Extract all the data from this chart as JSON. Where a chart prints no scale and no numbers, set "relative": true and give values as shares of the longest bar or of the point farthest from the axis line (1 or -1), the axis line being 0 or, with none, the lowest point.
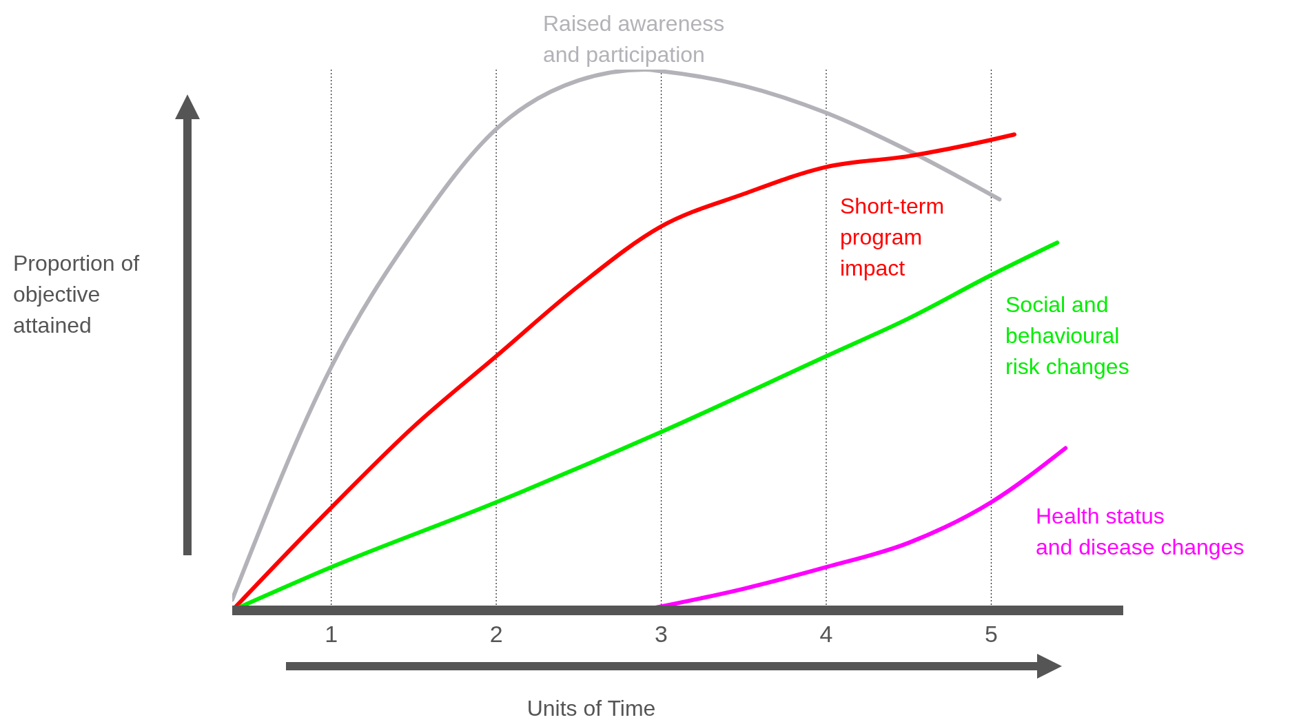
{
  "chart_data": {
    "type": "line",
    "relative": true,
    "xlabel": "Units of Time",
    "ylabel": "Proportion of objective attained",
    "xlim": [
      0.4,
      5.8
    ],
    "xticks": [
      1,
      2,
      3,
      4,
      5
    ],
    "grid": "x",
    "legend": false,
    "marker": "none",
    "line_style": "solid",
    "series": [
      {
        "name": "Raised awareness\nand participation",
        "color": "#b2b2b8",
        "x": [
          0.4,
          1,
          1.5,
          2,
          2.5,
          2.9,
          3,
          3.5,
          4,
          4.5,
          5.05
        ],
        "values": [
          0.02,
          0.45,
          0.7,
          0.89,
          0.98,
          1,
          0.997,
          0.97,
          0.92,
          0.85,
          0.76
        ]
      },
      {
        "name": "Short-term\nprogram\nimpact",
        "color": "#ff0000",
        "x": [
          0.4,
          1,
          1.5,
          2,
          2.5,
          3,
          3.5,
          4,
          4.5,
          5,
          5.14
        ],
        "values": [
          0,
          0.19,
          0.34,
          0.47,
          0.6,
          0.71,
          0.77,
          0.82,
          0.84,
          0.87,
          0.88
        ]
      },
      {
        "name": "Social and\nbehavioural\nrisk changes",
        "color": "#00ee00",
        "x": [
          0.4,
          1,
          2,
          3,
          4,
          4.5,
          5,
          5.4
        ],
        "values": [
          0,
          0.08,
          0.2,
          0.33,
          0.47,
          0.54,
          0.62,
          0.68
        ]
      },
      {
        "name": "Health status\nand disease changes",
        "color": "#ff00ff",
        "x": [
          2.88,
          3.5,
          4,
          4.5,
          5,
          5.45
        ],
        "values": [
          0,
          0.04,
          0.08,
          0.125,
          0.2,
          0.3
        ]
      }
    ]
  }
}
